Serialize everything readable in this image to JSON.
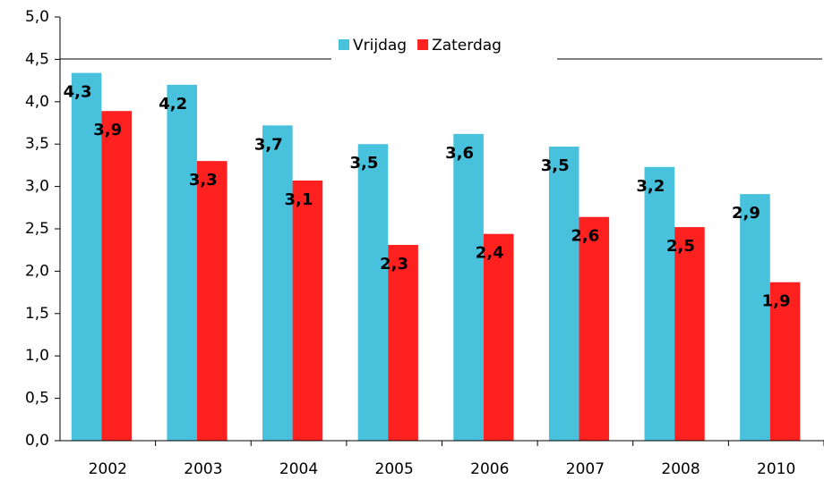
{
  "chart_data": {
    "type": "bar",
    "categories": [
      "2002",
      "2003",
      "2004",
      "2005",
      "2006",
      "2007",
      "2008",
      "2010"
    ],
    "series": [
      {
        "name": "Vrijdag",
        "color": "#47c1dc",
        "values": [
          4.34,
          4.2,
          3.72,
          3.5,
          3.62,
          3.47,
          3.23,
          2.91
        ],
        "value_labels": [
          "4,3",
          "4,2",
          "3,7",
          "3,5",
          "3,6",
          "3,5",
          "3,2",
          "2,9"
        ]
      },
      {
        "name": "Zaterdag",
        "color": "#ff2020",
        "values": [
          3.89,
          3.3,
          3.07,
          2.31,
          2.44,
          2.64,
          2.52,
          1.87
        ],
        "value_labels": [
          "3,9",
          "3,3",
          "3,1",
          "2,3",
          "2,4",
          "2,6",
          "2,5",
          "1,9"
        ]
      }
    ],
    "ylim": [
      0,
      5
    ],
    "yticks": [
      {
        "value": 0,
        "label": "0,0"
      },
      {
        "value": 0.5,
        "label": "0,5"
      },
      {
        "value": 1,
        "label": "1,0"
      },
      {
        "value": 1.5,
        "label": "1,5"
      },
      {
        "value": 2,
        "label": "2,0"
      },
      {
        "value": 2.5,
        "label": "2,5"
      },
      {
        "value": 3,
        "label": "3,0"
      },
      {
        "value": 3.5,
        "label": "3,5"
      },
      {
        "value": 4,
        "label": "4,0"
      },
      {
        "value": 4.5,
        "label": "4,5"
      },
      {
        "value": 5,
        "label": "5,0"
      }
    ],
    "legend": "top"
  }
}
